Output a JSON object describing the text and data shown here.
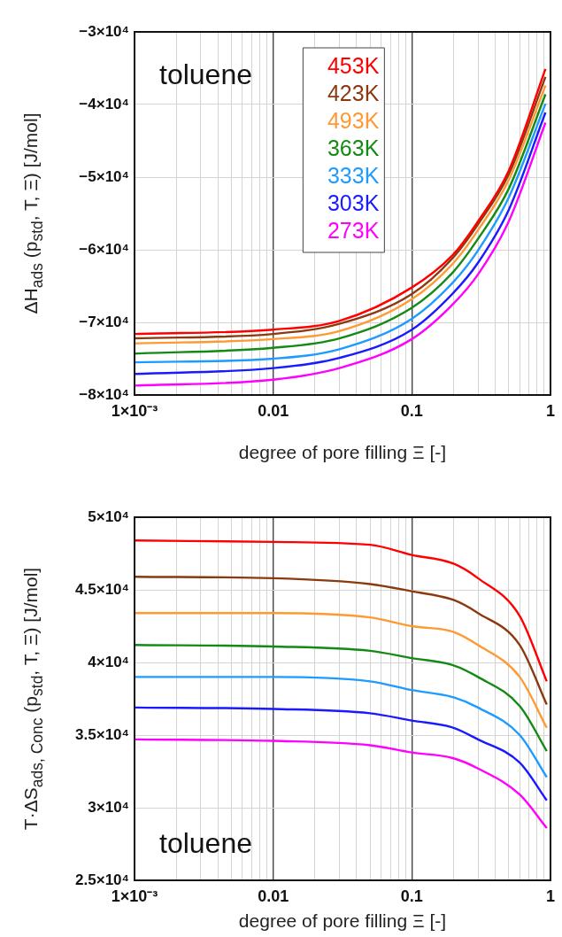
{
  "chart_data": [
    {
      "type": "line",
      "xlabel": "degree of pore filling Ξ [-]",
      "ylabel": "ΔH$_{ads}$ (p$_{std}$, T, Ξ)   [J/mol]",
      "annotations": [
        "toluene"
      ],
      "log": "x",
      "grid": true,
      "legend": "top",
      "xlim": [
        0.001,
        1
      ],
      "ylim": [
        -80000,
        -30000
      ],
      "xticks": [
        {
          "value": 0.001,
          "label": "1×10⁻³"
        },
        {
          "value": 0.002,
          "label": null
        },
        {
          "value": 0.003,
          "label": null
        },
        {
          "value": 0.004,
          "label": null
        },
        {
          "value": 0.005,
          "label": null
        },
        {
          "value": 0.006,
          "label": null
        },
        {
          "value": 0.007,
          "label": null
        },
        {
          "value": 0.008,
          "label": null
        },
        {
          "value": 0.009,
          "label": null
        },
        0.01,
        {
          "value": 0.02,
          "label": null
        },
        {
          "value": 0.03,
          "label": null
        },
        {
          "value": 0.04,
          "label": null
        },
        {
          "value": 0.05,
          "label": null
        },
        {
          "value": 0.06,
          "label": null
        },
        {
          "value": 0.07,
          "label": null
        },
        {
          "value": 0.08,
          "label": null
        },
        {
          "value": 0.09,
          "label": null
        },
        0.1,
        {
          "value": 0.2,
          "label": null
        },
        {
          "value": 0.3,
          "label": null
        },
        {
          "value": 0.4,
          "label": null
        },
        {
          "value": 0.5,
          "label": null
        },
        {
          "value": 0.6,
          "label": null
        },
        {
          "value": 0.7,
          "label": null
        },
        {
          "value": 0.8,
          "label": null
        },
        {
          "value": 0.9,
          "label": null
        },
        1
      ],
      "yticks": [
        {
          "value": -80000,
          "label": "−8×10⁴"
        },
        {
          "value": -70000,
          "label": "−7×10⁴"
        },
        {
          "value": -60000,
          "label": "−6×10⁴"
        },
        {
          "value": -50000,
          "label": "−5×10⁴"
        },
        {
          "value": -40000,
          "label": "−4×10⁴"
        },
        {
          "value": -30000,
          "label": "−3×10⁴"
        }
      ],
      "x": [
        0.001,
        0.01,
        0.03,
        0.1,
        0.2,
        0.3,
        0.5,
        0.92
      ],
      "series": [
        {
          "name": "453K",
          "color": "#ff0000",
          "values": [
            -71600,
            -71000,
            -69800,
            -65200,
            -60600,
            -56100,
            -49100,
            -35100
          ]
        },
        {
          "name": "423K",
          "color": "#8b3a0f",
          "values": [
            -72200,
            -71600,
            -70200,
            -66100,
            -61000,
            -56500,
            -49600,
            -36200
          ]
        },
        {
          "name": "493K",
          "color": "#ff9933",
          "values": [
            -72900,
            -72300,
            -71200,
            -66800,
            -61800,
            -57300,
            -50400,
            -37400
          ]
        },
        {
          "name": "363K",
          "color": "#138a13",
          "values": [
            -74300,
            -73500,
            -72200,
            -68000,
            -63000,
            -58500,
            -51600,
            -38600
          ]
        },
        {
          "name": "333K",
          "color": "#1e9bff",
          "values": [
            -75500,
            -75000,
            -73700,
            -69500,
            -64400,
            -60100,
            -52800,
            -39900
          ]
        },
        {
          "name": "303K",
          "color": "#1a1aff",
          "values": [
            -77100,
            -76300,
            -74900,
            -71000,
            -65900,
            -61800,
            -54500,
            -41100
          ]
        },
        {
          "name": "273K",
          "color": "#ff00ff",
          "values": [
            -78700,
            -77900,
            -76300,
            -72300,
            -67400,
            -63400,
            -56100,
            -42500
          ]
        }
      ]
    },
    {
      "type": "line",
      "xlabel": "degree of pore filling Ξ [-]",
      "ylabel": "T·ΔS$_{ads, Conc}$ (p$_{std}$, T, Ξ)  [J/mol]",
      "annotations": [
        "toluene"
      ],
      "log": "x",
      "grid": true,
      "xlim": [
        0.001,
        1
      ],
      "ylim": [
        25000,
        50000
      ],
      "xticks": [
        {
          "value": 0.001,
          "label": "1×10⁻³"
        },
        {
          "value": 0.002,
          "label": null
        },
        {
          "value": 0.003,
          "label": null
        },
        {
          "value": 0.004,
          "label": null
        },
        {
          "value": 0.005,
          "label": null
        },
        {
          "value": 0.006,
          "label": null
        },
        {
          "value": 0.007,
          "label": null
        },
        {
          "value": 0.008,
          "label": null
        },
        {
          "value": 0.009,
          "label": null
        },
        0.01,
        {
          "value": 0.02,
          "label": null
        },
        {
          "value": 0.03,
          "label": null
        },
        {
          "value": 0.04,
          "label": null
        },
        {
          "value": 0.05,
          "label": null
        },
        {
          "value": 0.06,
          "label": null
        },
        {
          "value": 0.07,
          "label": null
        },
        {
          "value": 0.08,
          "label": null
        },
        {
          "value": 0.09,
          "label": null
        },
        0.1,
        {
          "value": 0.2,
          "label": null
        },
        {
          "value": 0.3,
          "label": null
        },
        {
          "value": 0.4,
          "label": null
        },
        {
          "value": 0.5,
          "label": null
        },
        {
          "value": 0.6,
          "label": null
        },
        {
          "value": 0.7,
          "label": null
        },
        {
          "value": 0.8,
          "label": null
        },
        {
          "value": 0.9,
          "label": null
        },
        1
      ],
      "yticks": [
        {
          "value": 25000,
          "label": "2.5×10⁴"
        },
        {
          "value": 30000,
          "label": "3×10⁴"
        },
        {
          "value": 35000,
          "label": "3.5×10⁴"
        },
        {
          "value": 40000,
          "label": "4×10⁴"
        },
        {
          "value": 45000,
          "label": "4.5×10⁴"
        },
        {
          "value": 50000,
          "label": "5×10⁴"
        }
      ],
      "x": [
        0.001,
        0.01,
        0.05,
        0.1,
        0.2,
        0.3,
        0.6,
        0.94
      ],
      "series": [
        {
          "color": "#ff0000",
          "values": [
            48400,
            48300,
            48100,
            47400,
            46800,
            45800,
            43200,
            38700
          ]
        },
        {
          "color": "#8b3a0f",
          "values": [
            45900,
            45800,
            45400,
            44900,
            44300,
            43400,
            41200,
            37100
          ]
        },
        {
          "color": "#ff9933",
          "values": [
            43400,
            43400,
            43100,
            42500,
            42100,
            41200,
            39000,
            35500
          ]
        },
        {
          "color": "#138a13",
          "values": [
            41200,
            41100,
            40800,
            40300,
            39800,
            39000,
            37000,
            33900
          ]
        },
        {
          "color": "#1e9bff",
          "values": [
            39000,
            39000,
            38700,
            38100,
            37600,
            36900,
            35000,
            32100
          ]
        },
        {
          "color": "#1a1aff",
          "values": [
            36900,
            36800,
            36500,
            36000,
            35500,
            34700,
            33100,
            30500
          ]
        },
        {
          "color": "#ff00ff",
          "values": [
            34700,
            34600,
            34300,
            33800,
            33400,
            32700,
            30900,
            28600
          ]
        }
      ]
    }
  ]
}
